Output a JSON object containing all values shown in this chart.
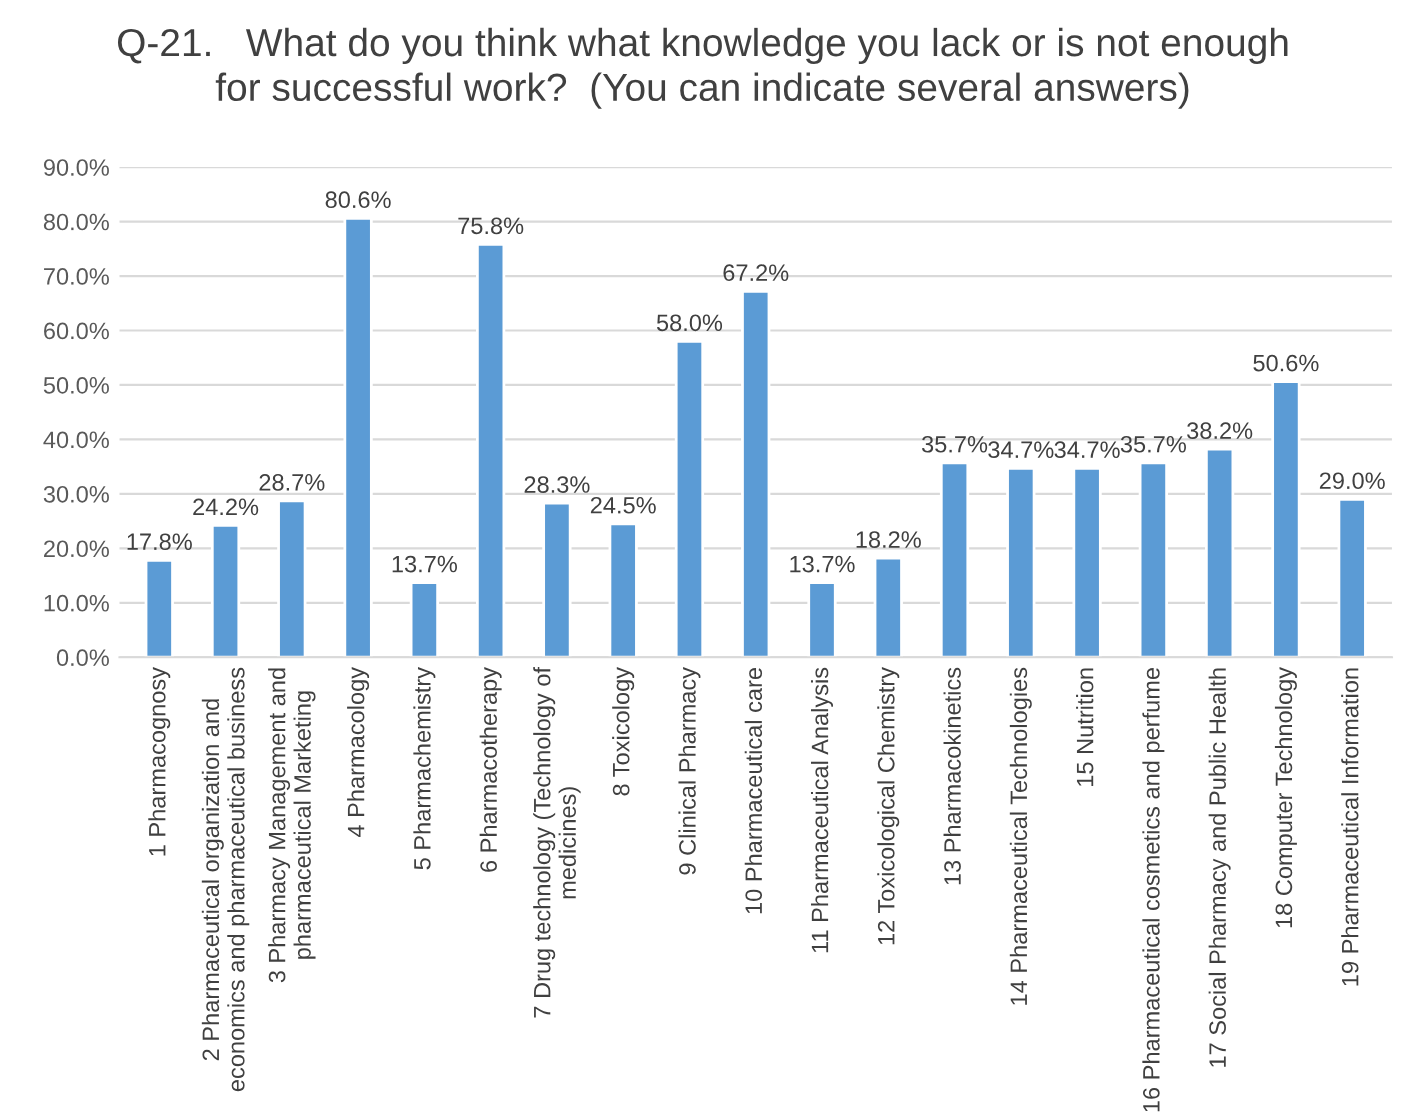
{
  "chart_data": {
    "type": "bar",
    "title": "Q-21.   What do you think what knowledge you lack or is not enough\nfor successful work?  (You can indicate several answers)",
    "categories": [
      "1 Pharmacognosy",
      "2 Pharmaceutical organization and\neconomics and pharmaceutical business",
      "3 Pharmacy Management and\npharmaceutical Marketing",
      "4 Pharmacology",
      "5 Pharmachemistry",
      "6 Pharmacotherapy",
      "7 Drug technology (Technology of\nmedicines)",
      "8 Toxicology",
      "9 Clinical Pharmacy",
      "10 Pharmaceutical care",
      "11 Pharmaceutical Analysis",
      "12 Toxicological Chemistry",
      "13 Pharmacokinetics",
      "14 Pharmaceutical Technologies",
      "15 Nutrition",
      "16 Pharmaceutical cosmetics and perfume",
      "17 Social Pharmacy and Public Health",
      "18 Computer Technology",
      "19 Pharmaceutical Information"
    ],
    "values": [
      17.8,
      24.2,
      28.7,
      80.6,
      13.7,
      75.8,
      28.3,
      24.5,
      58.0,
      67.2,
      13.7,
      18.2,
      35.7,
      34.7,
      34.7,
      35.7,
      38.2,
      50.6,
      29.0
    ],
    "value_labels": [
      "17.8%",
      "24.2%",
      "28.7%",
      "80.6%",
      "13.7%",
      "75.8%",
      "28.3%",
      "24.5%",
      "58.0%",
      "67.2%",
      "13.7%",
      "18.2%",
      "35.7%",
      "34.7%",
      "34.7%",
      "35.7%",
      "38.2%",
      "50.6%",
      "29.0%"
    ],
    "color": "#5b9bd5",
    "ylim": [
      0,
      90
    ],
    "yticks": [
      {
        "value": 0,
        "label": "0.0%"
      },
      {
        "value": 10,
        "label": "10.0%"
      },
      {
        "value": 20,
        "label": "20.0%"
      },
      {
        "value": 30,
        "label": "30.0%"
      },
      {
        "value": 40,
        "label": "40.0%"
      },
      {
        "value": 50,
        "label": "50.0%"
      },
      {
        "value": 60,
        "label": "60.0%"
      },
      {
        "value": 70,
        "label": "70.0%"
      },
      {
        "value": 80,
        "label": "80.0%"
      },
      {
        "value": 90,
        "label": "90.0%"
      }
    ],
    "grid": "y"
  }
}
